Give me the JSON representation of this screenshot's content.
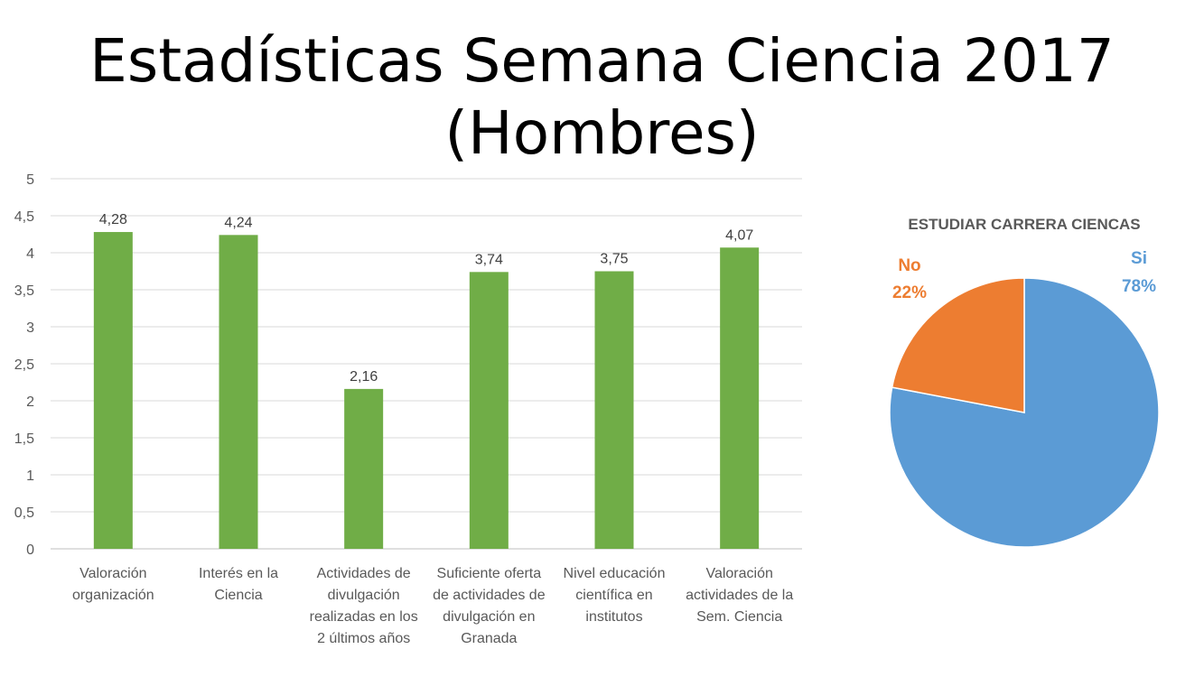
{
  "title": {
    "line1": "Estadísticas Semana Ciencia 2017",
    "line2": "(Hombres)"
  },
  "chart_data": [
    {
      "type": "bar",
      "title": "",
      "xlabel": "",
      "ylabel": "",
      "ylim": [
        0,
        5
      ],
      "yticks": [
        "0",
        "0,5",
        "1",
        "1,5",
        "2",
        "2,5",
        "3",
        "3,5",
        "4",
        "4,5",
        "5"
      ],
      "grid": true,
      "categories": [
        [
          "Valoración",
          "organización"
        ],
        [
          "Interés en la",
          "Ciencia"
        ],
        [
          "Actividades de",
          "divulgación",
          "realizadas en los",
          "2 últimos años"
        ],
        [
          "Suficiente oferta",
          "de actividades de",
          "divulgación en",
          "Granada"
        ],
        [
          "Nivel educación",
          "científica en",
          "institutos"
        ],
        [
          "Valoración",
          "actividades de la",
          "Sem. Ciencia"
        ]
      ],
      "values": [
        4.28,
        4.24,
        2.16,
        3.74,
        3.75,
        4.07
      ],
      "data_labels": [
        "4,28",
        "4,24",
        "2,16",
        "3,74",
        "3,75",
        "4,07"
      ],
      "bar_color": "#70ad47"
    },
    {
      "type": "pie",
      "title": "ESTUDIAR CARRERA CIENCAS",
      "slices": [
        {
          "name": "Si",
          "value": 78,
          "label": "78%",
          "color": "#5b9bd5"
        },
        {
          "name": "No",
          "value": 22,
          "label": "22%",
          "color": "#ed7d31"
        }
      ]
    }
  ]
}
